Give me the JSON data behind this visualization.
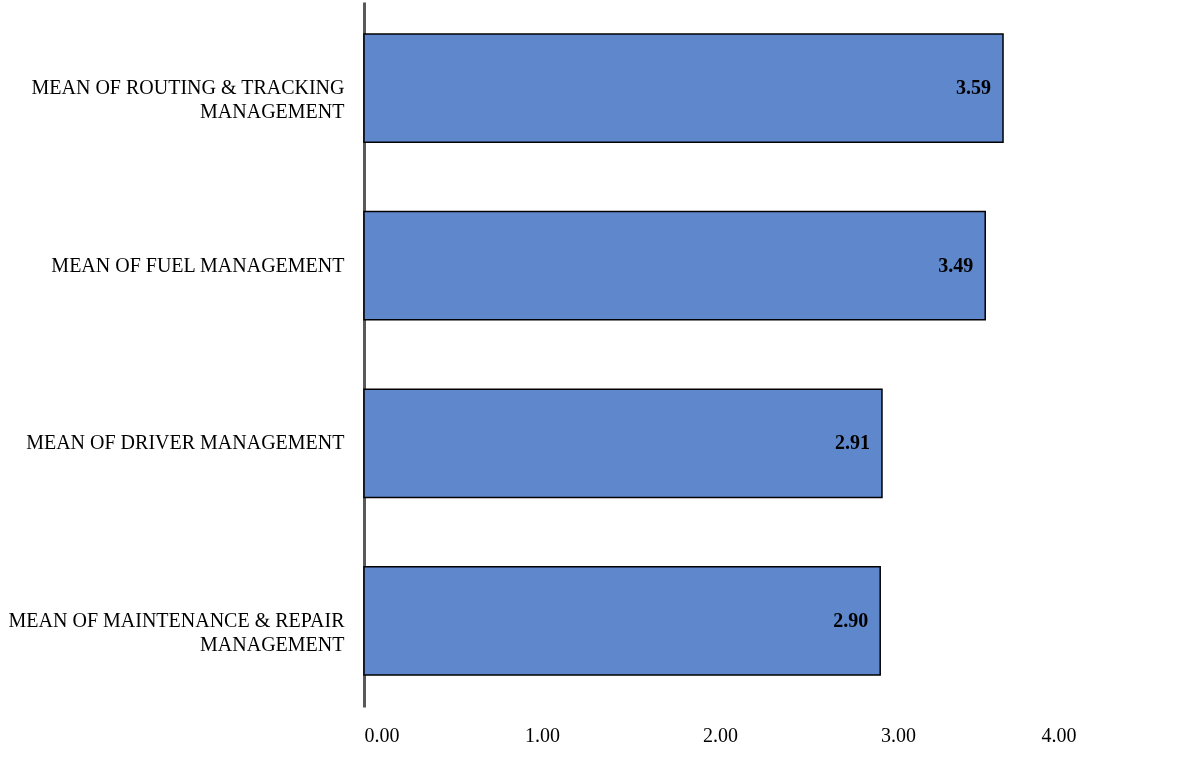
{
  "chart_data": {
    "type": "bar",
    "orientation": "horizontal",
    "categories": [
      "MEAN OF ROUTING & TRACKING MANAGEMENT",
      "MEAN OF FUEL MANAGEMENT",
      "MEAN OF DRIVER MANAGEMENT",
      "MEAN OF MAINTENANCE & REPAIR MANAGEMENT"
    ],
    "values": [
      3.59,
      3.49,
      2.91,
      2.9
    ],
    "value_labels": [
      "3.59",
      "3.49",
      "2.91",
      "2.90"
    ],
    "color": "#5f87cc",
    "xlim": [
      0,
      4
    ],
    "xticks": [
      {
        "value": 0,
        "label": "0.00"
      },
      {
        "value": 1,
        "label": "1.00"
      },
      {
        "value": 2,
        "label": "2.00"
      },
      {
        "value": 3,
        "label": "3.00"
      },
      {
        "value": 4,
        "label": "4.00"
      }
    ],
    "grid": false
  }
}
